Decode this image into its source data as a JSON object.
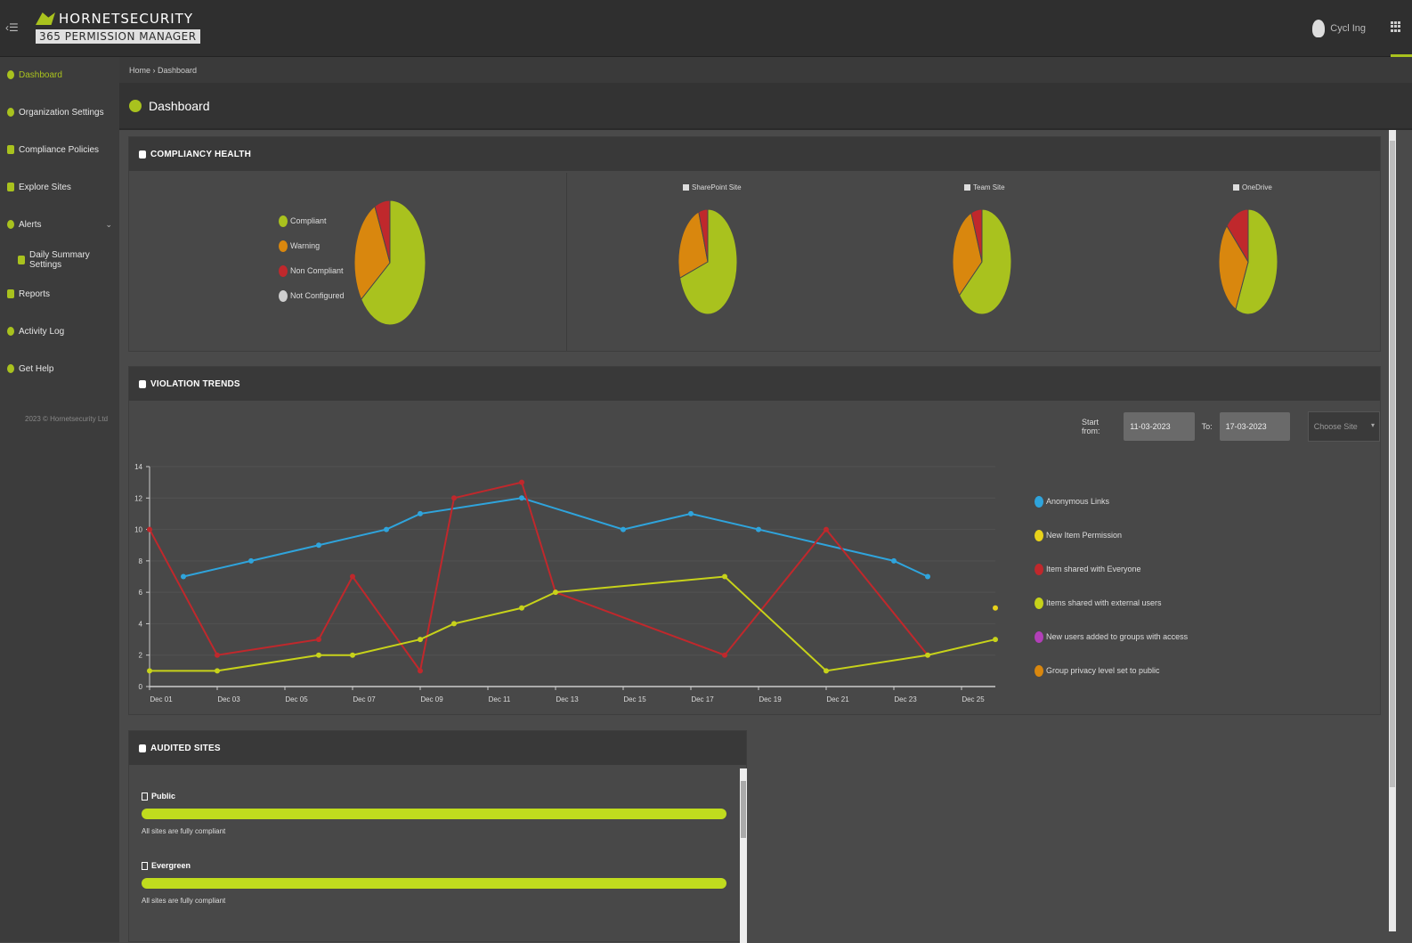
{
  "header": {
    "logo_top": "HORNETSECURITY",
    "logo_sub": "365 PERMISSION MANAGER",
    "user_name": "Cycl Ing"
  },
  "sidebar": {
    "items": [
      {
        "label": "Dashboard",
        "icon": "dashboard-icon"
      },
      {
        "label": "Organization Settings",
        "icon": "settings-icon"
      },
      {
        "label": "Compliance Policies",
        "icon": "policy-icon"
      },
      {
        "label": "Explore Sites",
        "icon": "sites-icon"
      },
      {
        "label": "Alerts",
        "icon": "alert-icon"
      },
      {
        "label": "Daily Summary Settings",
        "icon": "summary-icon"
      },
      {
        "label": "Reports",
        "icon": "reports-icon"
      },
      {
        "label": "Activity Log",
        "icon": "activity-icon"
      },
      {
        "label": "Get Help",
        "icon": "help-icon"
      }
    ],
    "copyright": "2023 © Hornetsecurity Ltd"
  },
  "breadcrumb": "Home › Dashboard",
  "page_title": "Dashboard",
  "compliancy": {
    "title": "COMPLIANCY HEALTH",
    "legend": [
      {
        "label": "Compliant",
        "color": "#a9c21e"
      },
      {
        "label": "Warning",
        "color": "#d9870e"
      },
      {
        "label": "Non Compliant",
        "color": "#c0282c"
      },
      {
        "label": "Not Configured",
        "color": "#cfcfcf"
      }
    ],
    "site_labels": [
      "SharePoint Site",
      "Team Site",
      "OneDrive"
    ],
    "pies": [
      {
        "name": "overall",
        "values": [
          65,
          28,
          7,
          0
        ]
      },
      {
        "name": "sharepoint",
        "values": [
          70,
          25,
          5,
          0
        ]
      },
      {
        "name": "team",
        "values": [
          64,
          30,
          6,
          0
        ]
      },
      {
        "name": "onedrive",
        "values": [
          57,
          30,
          13,
          0
        ]
      }
    ]
  },
  "violation": {
    "title": "VIOLATION TRENDS",
    "start_label": "Start from:",
    "start_value": "11-03-2023",
    "to_label": "To:",
    "to_value": "17-03-2023",
    "site_placeholder": "Choose Site"
  },
  "chart_data": {
    "type": "line",
    "title": "",
    "xlabel": "",
    "ylabel": "",
    "ylim": [
      0,
      14
    ],
    "yticks": [
      0,
      2,
      4,
      6,
      8,
      10,
      12,
      14
    ],
    "x_ticks": [
      "Dec 01",
      "Dec 03",
      "Dec 05",
      "Dec 07",
      "Dec 09",
      "Dec 11",
      "Dec 13",
      "Dec 15",
      "Dec 17",
      "Dec 19",
      "Dec 21",
      "Dec 23",
      "Dec 25"
    ],
    "x_range": [
      1,
      26
    ],
    "series": [
      {
        "name": "Anonymous Links",
        "color": "#2fa4dc",
        "points": [
          [
            2,
            7
          ],
          [
            4,
            8
          ],
          [
            6,
            9
          ],
          [
            8,
            10
          ],
          [
            9,
            11
          ],
          [
            12,
            12
          ],
          [
            15,
            10
          ],
          [
            17,
            11
          ],
          [
            19,
            10
          ],
          [
            23,
            8
          ],
          [
            24,
            7
          ]
        ]
      },
      {
        "name": "New Item Permission",
        "color": "#e8d21a",
        "points": [
          [
            26,
            5
          ]
        ]
      },
      {
        "name": "Item shared with Everyone",
        "color": "#c0282c",
        "points": [
          [
            1,
            10
          ],
          [
            3,
            2
          ],
          [
            6,
            3
          ],
          [
            7,
            7
          ],
          [
            9,
            1
          ],
          [
            10,
            12
          ],
          [
            12,
            13
          ],
          [
            13,
            6
          ],
          [
            18,
            2
          ],
          [
            21,
            10
          ],
          [
            24,
            2
          ]
        ]
      },
      {
        "name": "Items shared with external users",
        "color": "#c7d21a",
        "points": [
          [
            1,
            1
          ],
          [
            3,
            1
          ],
          [
            6,
            2
          ],
          [
            7,
            2
          ],
          [
            9,
            3
          ],
          [
            10,
            4
          ],
          [
            12,
            5
          ],
          [
            13,
            6
          ],
          [
            18,
            7
          ],
          [
            21,
            1
          ],
          [
            24,
            2
          ],
          [
            26,
            3
          ]
        ]
      },
      {
        "name": "New users added to groups with access",
        "color": "#b23fb8",
        "points": []
      },
      {
        "name": "Group privacy level set to public",
        "color": "#d9870e",
        "points": []
      }
    ]
  },
  "audited": {
    "title": "AUDITED SITES",
    "sites": [
      {
        "name": "Public",
        "status": "All sites are fully compliant",
        "progress": 1.0
      },
      {
        "name": "Evergreen",
        "status": "All sites are fully compliant",
        "progress": 1.0
      }
    ]
  }
}
